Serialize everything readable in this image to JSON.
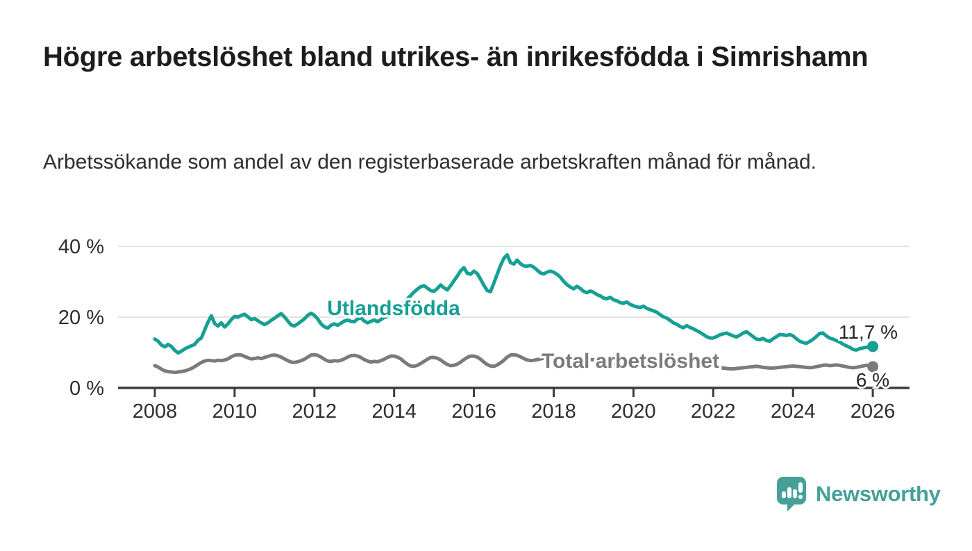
{
  "header": {
    "title": "Högre arbetslöshet bland utrikes- än inrikesfödda i Simrishamn",
    "subtitle": "Arbetssökande som andel av den registerbaserade arbetskraften månad för månad."
  },
  "chart_data": {
    "type": "line",
    "title": "Högre arbetslöshet bland utrikes- än inrikesfödda i Simrishamn",
    "xlabel": "",
    "ylabel": "Arbetssökande som andel av den registerbaserade arbetskraften",
    "unit": "%",
    "grid": "horizontal",
    "x_start_year": 2008,
    "x_step_months": 1,
    "xlim": [
      2007.1,
      2026.9
    ],
    "ylim": [
      0,
      43
    ],
    "xticks": [
      2008,
      2010,
      2012,
      2014,
      2016,
      2018,
      2020,
      2022,
      2024,
      2026
    ],
    "yticks": [
      {
        "label": "0 %",
        "value": 0
      },
      {
        "label": "20 %",
        "value": 20
      },
      {
        "label": "40 %",
        "value": 40
      }
    ],
    "series": [
      {
        "name": "Utlandsfödda",
        "color": "#16a094",
        "end_label": "11,7 %",
        "end_value": 11.7,
        "values": [
          13.8,
          13.2,
          12.1,
          11.6,
          12.3,
          11.7,
          10.6,
          9.9,
          10.4,
          11.0,
          11.5,
          11.9,
          12.3,
          13.5,
          14.1,
          16.4,
          18.6,
          20.4,
          18.2,
          17.5,
          18.4,
          17.2,
          18.1,
          19.3,
          20.2,
          20.0,
          20.5,
          20.8,
          20.1,
          19.3,
          19.6,
          19.0,
          18.4,
          17.9,
          18.4,
          19.1,
          19.7,
          20.4,
          21.0,
          20.1,
          18.9,
          17.8,
          17.5,
          18.1,
          18.8,
          19.5,
          20.5,
          21.1,
          20.5,
          19.5,
          18.1,
          17.3,
          16.9,
          17.7,
          18.1,
          17.7,
          18.3,
          18.9,
          19.2,
          18.8,
          18.7,
          19.5,
          19.8,
          18.9,
          18.4,
          18.8,
          19.2,
          18.7,
          19.3,
          19.9,
          20.2,
          20.9,
          21.6,
          22.3,
          23.0,
          24.1,
          25.2,
          26.1,
          27.1,
          27.9,
          28.6,
          28.9,
          28.2,
          27.5,
          27.3,
          28.1,
          29.1,
          28.3,
          27.7,
          28.9,
          30.3,
          31.6,
          33.1,
          34.0,
          32.4,
          32.1,
          33.0,
          32.3,
          30.7,
          29.0,
          27.5,
          27.2,
          29.6,
          32.1,
          34.6,
          36.6,
          37.6,
          35.4,
          35.0,
          36.1,
          35.1,
          34.5,
          34.4,
          34.6,
          34.1,
          33.3,
          32.5,
          32.2,
          32.7,
          33.0,
          32.7,
          32.1,
          31.3,
          30.1,
          29.2,
          28.5,
          28.0,
          28.7,
          28.1,
          27.3,
          26.9,
          27.4,
          27.0,
          26.4,
          26.0,
          25.4,
          25.2,
          25.6,
          24.9,
          24.6,
          24.1,
          23.9,
          24.3,
          23.6,
          23.2,
          22.9,
          22.7,
          23.1,
          22.5,
          22.1,
          21.8,
          21.4,
          20.7,
          20.1,
          19.7,
          19.1,
          18.4,
          18.0,
          17.4,
          17.0,
          17.6,
          17.1,
          16.7,
          16.2,
          15.7,
          15.1,
          14.5,
          14.1,
          14.1,
          14.5,
          15.0,
          15.3,
          15.5,
          15.1,
          14.7,
          14.4,
          14.9,
          15.5,
          15.9,
          15.2,
          14.5,
          13.8,
          13.6,
          14.0,
          13.4,
          13.2,
          13.9,
          14.5,
          15.1,
          15.0,
          14.8,
          15.1,
          14.7,
          13.9,
          13.2,
          12.8,
          12.6,
          13.1,
          13.7,
          14.5,
          15.4,
          15.5,
          14.7,
          14.1,
          13.8,
          13.4,
          13.0,
          12.4,
          11.9,
          11.5,
          10.9,
          10.7,
          11.1,
          11.3,
          11.5,
          11.6,
          11.7
        ]
      },
      {
        "name": "Total arbetslöshet",
        "color": "#7b7b7b",
        "end_label": "6 %",
        "end_value": 6.0,
        "values": [
          6.3,
          5.9,
          5.3,
          4.8,
          4.6,
          4.5,
          4.4,
          4.5,
          4.6,
          4.8,
          5.1,
          5.5,
          6.0,
          6.6,
          7.2,
          7.6,
          7.8,
          7.7,
          7.6,
          7.8,
          7.7,
          7.9,
          8.2,
          8.8,
          9.2,
          9.4,
          9.3,
          8.9,
          8.5,
          8.2,
          8.3,
          8.5,
          8.3,
          8.6,
          8.9,
          9.2,
          9.3,
          9.1,
          8.7,
          8.2,
          7.7,
          7.3,
          7.2,
          7.4,
          7.7,
          8.1,
          8.7,
          9.3,
          9.4,
          9.2,
          8.7,
          8.1,
          7.6,
          7.5,
          7.7,
          7.6,
          7.8,
          8.2,
          8.7,
          9.1,
          9.2,
          9.0,
          8.6,
          8.0,
          7.6,
          7.3,
          7.5,
          7.4,
          7.7,
          8.1,
          8.6,
          9.0,
          9.0,
          8.7,
          8.2,
          7.4,
          6.7,
          6.2,
          6.1,
          6.4,
          6.9,
          7.5,
          8.1,
          8.6,
          8.6,
          8.4,
          7.9,
          7.2,
          6.6,
          6.3,
          6.4,
          6.7,
          7.3,
          8.0,
          8.6,
          9.0,
          9.0,
          8.7,
          8.1,
          7.3,
          6.6,
          6.2,
          6.1,
          6.5,
          7.1,
          7.8,
          8.7,
          9.3,
          9.4,
          9.2,
          8.8,
          8.3,
          7.9,
          7.7,
          7.8,
          8.0,
          8.2,
          8.4,
          8.6,
          8.8,
          8.8,
          8.6,
          8.3,
          7.9,
          7.5,
          7.2,
          7.1,
          7.3,
          7.5,
          7.6,
          7.8,
          8.0,
          8.0,
          7.8,
          7.5,
          7.1,
          6.8,
          6.6,
          6.6,
          6.8,
          7.0,
          7.1,
          7.3,
          7.5,
          7.6,
          7.7,
          8.0,
          8.4,
          8.5,
          8.4,
          8.2,
          8.1,
          7.9,
          7.7,
          7.5,
          7.4,
          7.4,
          7.2,
          7.0,
          6.7,
          6.4,
          6.2,
          6.1,
          6.2,
          6.3,
          6.3,
          6.2,
          6.1,
          6.0,
          5.9,
          5.7,
          5.6,
          5.5,
          5.4,
          5.4,
          5.5,
          5.6,
          5.7,
          5.8,
          5.9,
          6.0,
          6.1,
          6.0,
          5.8,
          5.7,
          5.6,
          5.6,
          5.7,
          5.8,
          5.9,
          6.0,
          6.1,
          6.2,
          6.1,
          6.0,
          5.9,
          5.8,
          5.7,
          5.8,
          6.0,
          6.2,
          6.4,
          6.5,
          6.3,
          6.4,
          6.5,
          6.4,
          6.2,
          6.0,
          5.8,
          5.7,
          5.8,
          6.0,
          6.2,
          6.4,
          6.3,
          6.0
        ]
      }
    ]
  },
  "footer": {
    "brand": "Newsworthy"
  }
}
